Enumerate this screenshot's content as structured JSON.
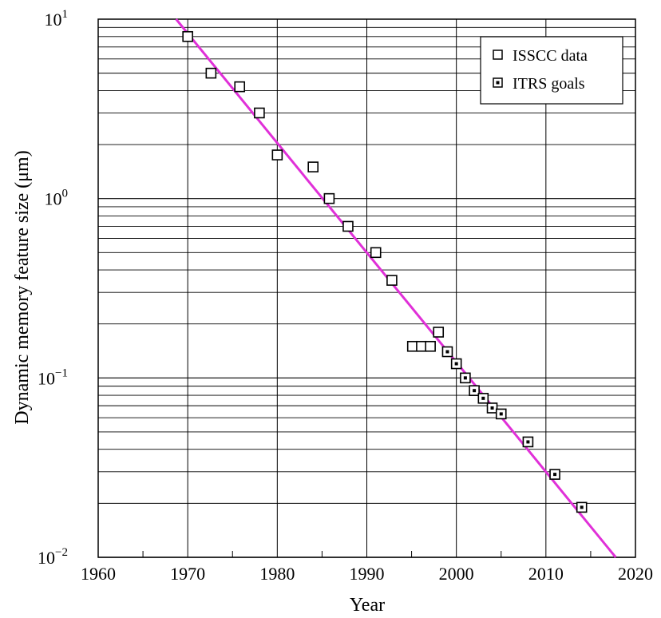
{
  "chart_data": {
    "type": "scatter",
    "xlabel": "Year",
    "ylabel": "Dynamic memory feature size (μm)",
    "x_ticks": [
      "1960",
      "1970",
      "1980",
      "1990",
      "2000",
      "2010",
      "2020"
    ],
    "y_ticks": [
      {
        "base": "10",
        "exp": "1"
      },
      {
        "base": "10",
        "exp": "0"
      },
      {
        "base": "10",
        "exp": "−1"
      },
      {
        "base": "10",
        "exp": "−2"
      }
    ],
    "xlim": [
      1960,
      2020
    ],
    "ylim": [
      0.01,
      10
    ],
    "y_scale": "log",
    "grid": true,
    "legend_position": "top-right",
    "colors": {
      "trend_line": "#e030d8",
      "issc_marker_fill": "#ffffff",
      "itrs_marker_dot": "#000000",
      "grid": "#000000"
    },
    "series": [
      {
        "name": "ISSCC data",
        "marker": "open-square",
        "points": [
          {
            "x": 1970,
            "y": 8.0
          },
          {
            "x": 1972.6,
            "y": 5.0
          },
          {
            "x": 1975.8,
            "y": 4.2
          },
          {
            "x": 1978,
            "y": 3.0
          },
          {
            "x": 1980,
            "y": 1.75
          },
          {
            "x": 1984,
            "y": 1.5
          },
          {
            "x": 1985.8,
            "y": 1.0
          },
          {
            "x": 1987.9,
            "y": 0.7
          },
          {
            "x": 1991,
            "y": 0.5
          },
          {
            "x": 1992.8,
            "y": 0.35
          },
          {
            "x": 1995.1,
            "y": 0.15
          },
          {
            "x": 1996.1,
            "y": 0.15
          },
          {
            "x": 1997.1,
            "y": 0.15
          },
          {
            "x": 1998,
            "y": 0.18
          }
        ]
      },
      {
        "name": "ITRS goals",
        "marker": "dotted-square",
        "points": [
          {
            "x": 1999,
            "y": 0.14
          },
          {
            "x": 2000,
            "y": 0.12
          },
          {
            "x": 2001,
            "y": 0.1
          },
          {
            "x": 2002,
            "y": 0.085
          },
          {
            "x": 2003,
            "y": 0.077
          },
          {
            "x": 2004,
            "y": 0.068
          },
          {
            "x": 2005,
            "y": 0.063
          },
          {
            "x": 2008,
            "y": 0.044
          },
          {
            "x": 2011,
            "y": 0.029
          },
          {
            "x": 2014,
            "y": 0.019
          }
        ]
      }
    ],
    "trend_line": {
      "points": [
        {
          "x": 1968.7,
          "y": 10
        },
        {
          "x": 2017.8,
          "y": 0.01
        }
      ]
    }
  }
}
